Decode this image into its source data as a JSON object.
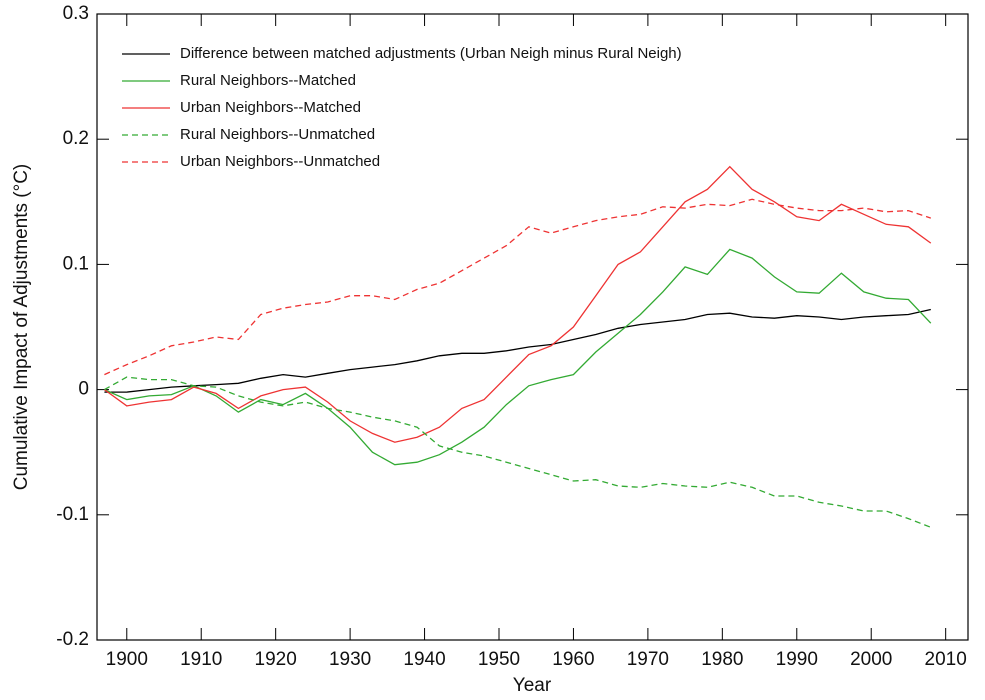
{
  "chart_data": {
    "type": "line",
    "xlabel": "Year",
    "ylabel": "Cumulative Impact of Adjustments (°C)",
    "x": [
      1897,
      1900,
      1903,
      1906,
      1909,
      1912,
      1915,
      1918,
      1921,
      1924,
      1927,
      1930,
      1933,
      1936,
      1939,
      1942,
      1945,
      1948,
      1951,
      1954,
      1957,
      1960,
      1963,
      1966,
      1969,
      1972,
      1975,
      1978,
      1981,
      1984,
      1987,
      1990,
      1993,
      1996,
      1999,
      2002,
      2005,
      2008
    ],
    "xlim": [
      1896,
      2013
    ],
    "xticks": [
      1900,
      1910,
      1920,
      1930,
      1940,
      1950,
      1960,
      1970,
      1980,
      1990,
      2000,
      2010
    ],
    "ylim": [
      -0.2,
      0.3
    ],
    "yticks": [
      -0.2,
      -0.1,
      0,
      0.1,
      0.2,
      0.3
    ],
    "legend": "upper left",
    "series": [
      {
        "name": "Difference between matched adjustments (Urban Neigh minus Rural Neigh)",
        "color": "#000000",
        "dashed": false,
        "values": [
          -0.002,
          -0.002,
          0.0,
          0.002,
          0.003,
          0.004,
          0.005,
          0.009,
          0.012,
          0.01,
          0.013,
          0.016,
          0.018,
          0.02,
          0.023,
          0.027,
          0.029,
          0.029,
          0.031,
          0.034,
          0.036,
          0.04,
          0.044,
          0.049,
          0.052,
          0.054,
          0.056,
          0.06,
          0.061,
          0.058,
          0.057,
          0.059,
          0.058,
          0.056,
          0.058,
          0.059,
          0.06,
          0.064
        ]
      },
      {
        "name": "Rural Neighbors--Matched",
        "color": "#33aa33",
        "dashed": false,
        "values": [
          0.0,
          -0.008,
          -0.005,
          -0.004,
          0.003,
          -0.005,
          -0.018,
          -0.008,
          -0.012,
          -0.003,
          -0.015,
          -0.03,
          -0.05,
          -0.06,
          -0.058,
          -0.052,
          -0.042,
          -0.03,
          -0.012,
          0.003,
          0.008,
          0.012,
          0.03,
          0.045,
          0.06,
          0.078,
          0.098,
          0.092,
          0.112,
          0.105,
          0.09,
          0.078,
          0.077,
          0.093,
          0.078,
          0.073,
          0.072,
          0.053
        ]
      },
      {
        "name": "Urban Neighbors--Matched",
        "color": "#ee3333",
        "dashed": false,
        "values": [
          0.0,
          -0.013,
          -0.01,
          -0.008,
          0.002,
          -0.003,
          -0.015,
          -0.005,
          0.0,
          0.002,
          -0.01,
          -0.025,
          -0.035,
          -0.042,
          -0.038,
          -0.03,
          -0.015,
          -0.008,
          0.01,
          0.028,
          0.035,
          0.05,
          0.075,
          0.1,
          0.11,
          0.13,
          0.15,
          0.16,
          0.178,
          0.16,
          0.15,
          0.138,
          0.135,
          0.148,
          0.14,
          0.132,
          0.13,
          0.117
        ]
      },
      {
        "name": "Rural Neighbors--Unmatched",
        "color": "#33aa33",
        "dashed": true,
        "values": [
          0.0,
          0.01,
          0.008,
          0.008,
          0.003,
          0.002,
          -0.005,
          -0.01,
          -0.013,
          -0.01,
          -0.015,
          -0.018,
          -0.022,
          -0.025,
          -0.03,
          -0.045,
          -0.05,
          -0.053,
          -0.058,
          -0.063,
          -0.068,
          -0.073,
          -0.072,
          -0.077,
          -0.078,
          -0.075,
          -0.077,
          -0.078,
          -0.074,
          -0.078,
          -0.085,
          -0.085,
          -0.09,
          -0.093,
          -0.097,
          -0.097,
          -0.103,
          -0.11
        ]
      },
      {
        "name": "Urban Neighbors--Unmatched",
        "color": "#ee3333",
        "dashed": true,
        "values": [
          0.012,
          0.02,
          0.027,
          0.035,
          0.038,
          0.042,
          0.04,
          0.06,
          0.065,
          0.068,
          0.07,
          0.075,
          0.075,
          0.072,
          0.08,
          0.085,
          0.095,
          0.105,
          0.115,
          0.13,
          0.125,
          0.13,
          0.135,
          0.138,
          0.14,
          0.146,
          0.145,
          0.148,
          0.147,
          0.152,
          0.148,
          0.145,
          0.143,
          0.143,
          0.145,
          0.142,
          0.143,
          0.137
        ]
      }
    ]
  }
}
